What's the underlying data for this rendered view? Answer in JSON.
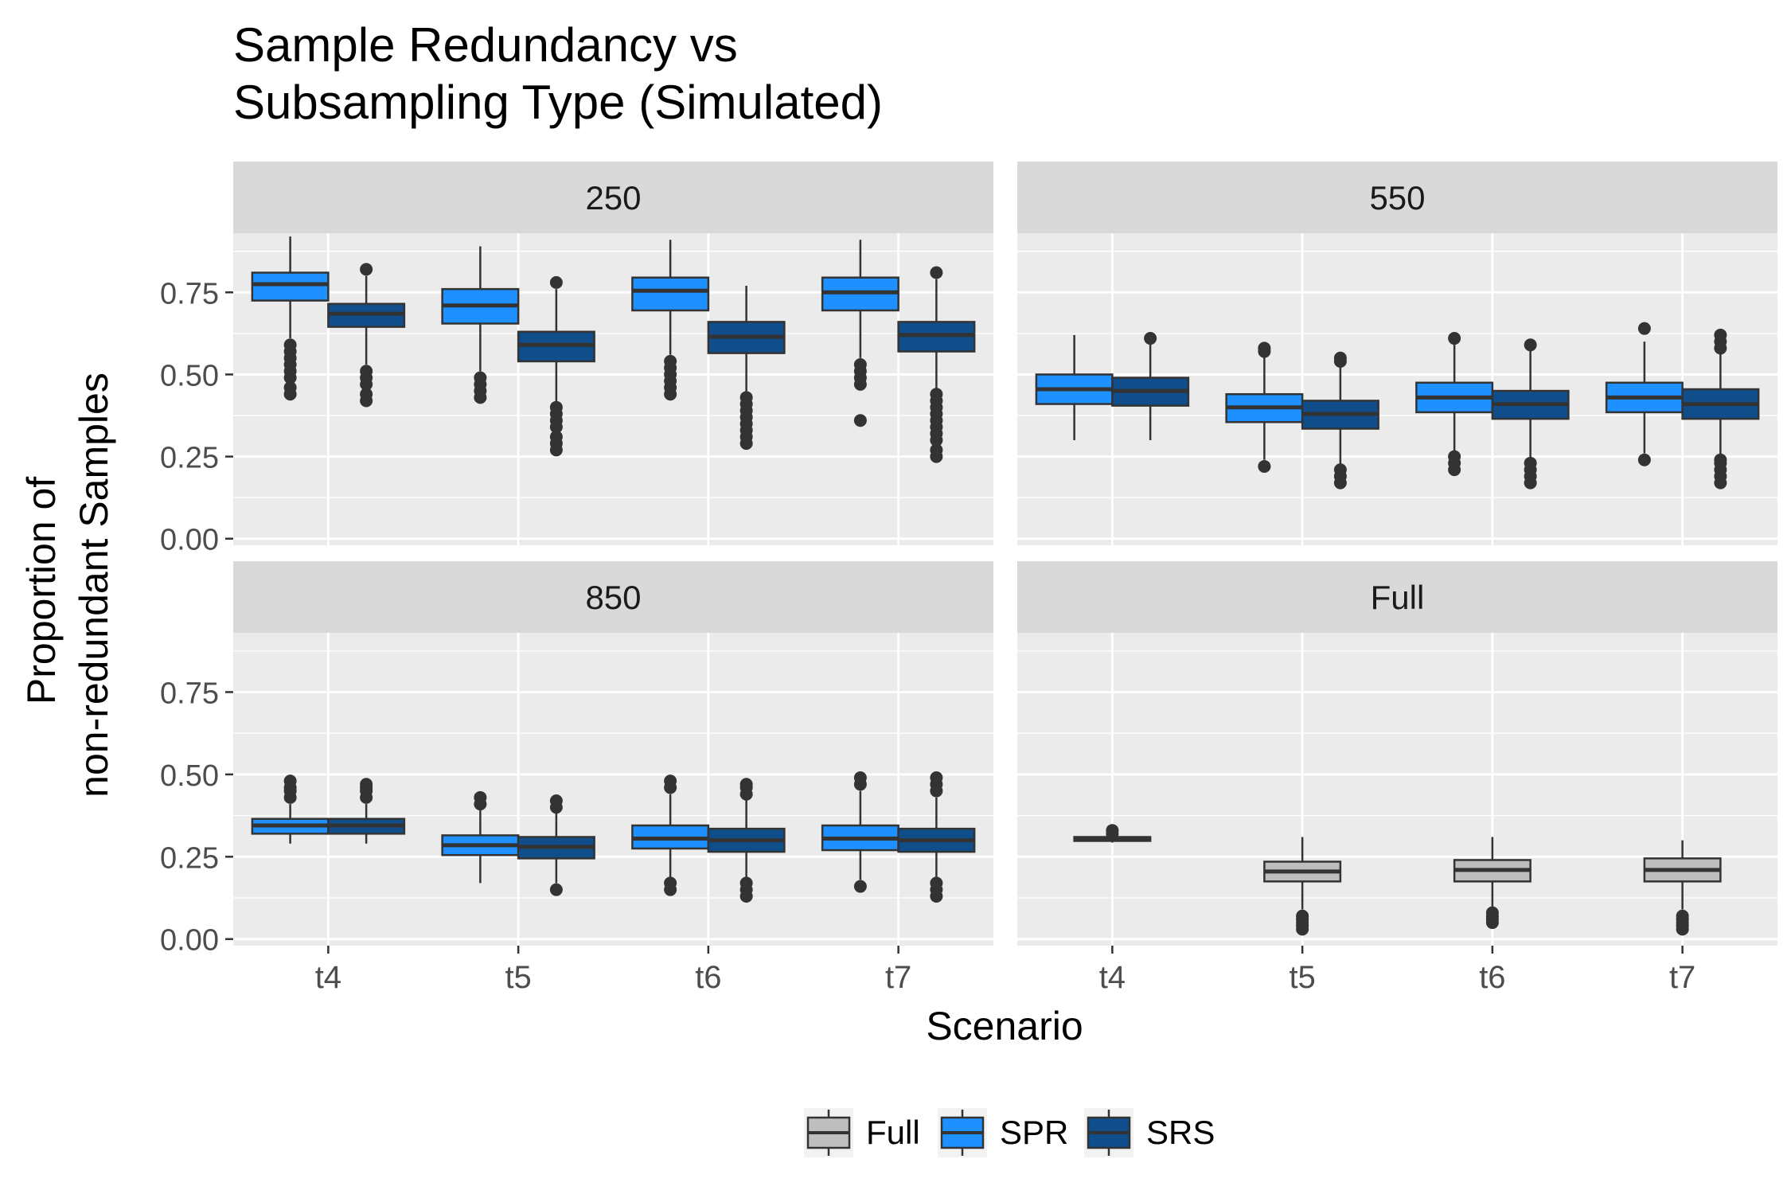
{
  "chart_data": {
    "type": "boxplot",
    "title": "Sample Redundancy vs\nSubsampling Type (Simulated)",
    "xlabel": "Scenario",
    "ylabel": "Proportion of\nnon-redundant Samples",
    "categories": [
      "t4",
      "t5",
      "t6",
      "t7"
    ],
    "yticks": [
      0.0,
      0.25,
      0.5,
      0.75
    ],
    "ytick_labels": [
      "0.00",
      "0.25",
      "0.50",
      "0.75"
    ],
    "ylim": [
      -0.02,
      0.93
    ],
    "grid": true,
    "legend_position": "bottom",
    "legend": [
      {
        "name": "Full",
        "color": "#bebebe"
      },
      {
        "name": "SPR",
        "color": "#1e90ff"
      },
      {
        "name": "SRS",
        "color": "#104e8b"
      }
    ],
    "panels": [
      {
        "name": "250",
        "boxes": [
          {
            "category": "t4",
            "group": "SPR",
            "whisker_low": 0.61,
            "q1": 0.725,
            "median": 0.775,
            "q3": 0.81,
            "whisker_high": 0.92,
            "outliers": [
              0.44,
              0.46,
              0.49,
              0.51,
              0.53,
              0.55,
              0.57,
              0.59
            ]
          },
          {
            "category": "t4",
            "group": "SRS",
            "whisker_low": 0.53,
            "q1": 0.645,
            "median": 0.685,
            "q3": 0.715,
            "whisker_high": 0.8,
            "outliers": [
              0.42,
              0.44,
              0.47,
              0.49,
              0.51,
              0.82
            ]
          },
          {
            "category": "t5",
            "group": "SPR",
            "whisker_low": 0.51,
            "q1": 0.655,
            "median": 0.71,
            "q3": 0.76,
            "whisker_high": 0.89,
            "outliers": [
              0.43,
              0.45,
              0.47,
              0.49
            ]
          },
          {
            "category": "t5",
            "group": "SRS",
            "whisker_low": 0.41,
            "q1": 0.54,
            "median": 0.59,
            "q3": 0.63,
            "whisker_high": 0.76,
            "outliers": [
              0.27,
              0.29,
              0.31,
              0.34,
              0.36,
              0.38,
              0.4,
              0.78
            ]
          },
          {
            "category": "t6",
            "group": "SPR",
            "whisker_low": 0.56,
            "q1": 0.695,
            "median": 0.755,
            "q3": 0.795,
            "whisker_high": 0.91,
            "outliers": [
              0.44,
              0.46,
              0.48,
              0.5,
              0.52,
              0.54
            ]
          },
          {
            "category": "t6",
            "group": "SRS",
            "whisker_low": 0.44,
            "q1": 0.565,
            "median": 0.615,
            "q3": 0.66,
            "whisker_high": 0.77,
            "outliers": [
              0.29,
              0.31,
              0.33,
              0.35,
              0.37,
              0.39,
              0.41,
              0.43
            ]
          },
          {
            "category": "t7",
            "group": "SPR",
            "whisker_low": 0.55,
            "q1": 0.695,
            "median": 0.75,
            "q3": 0.795,
            "whisker_high": 0.91,
            "outliers": [
              0.36,
              0.47,
              0.49,
              0.51,
              0.53
            ]
          },
          {
            "category": "t7",
            "group": "SRS",
            "whisker_low": 0.45,
            "q1": 0.57,
            "median": 0.62,
            "q3": 0.66,
            "whisker_high": 0.79,
            "outliers": [
              0.25,
              0.27,
              0.3,
              0.32,
              0.34,
              0.36,
              0.38,
              0.4,
              0.42,
              0.44,
              0.81
            ]
          }
        ]
      },
      {
        "name": "550",
        "boxes": [
          {
            "category": "t4",
            "group": "SPR",
            "whisker_low": 0.3,
            "q1": 0.41,
            "median": 0.455,
            "q3": 0.5,
            "whisker_high": 0.62,
            "outliers": []
          },
          {
            "category": "t4",
            "group": "SRS",
            "whisker_low": 0.3,
            "q1": 0.405,
            "median": 0.45,
            "q3": 0.49,
            "whisker_high": 0.6,
            "outliers": [
              0.61
            ]
          },
          {
            "category": "t5",
            "group": "SPR",
            "whisker_low": 0.24,
            "q1": 0.355,
            "median": 0.4,
            "q3": 0.44,
            "whisker_high": 0.56,
            "outliers": [
              0.22,
              0.57,
              0.58
            ]
          },
          {
            "category": "t5",
            "group": "SRS",
            "whisker_low": 0.22,
            "q1": 0.335,
            "median": 0.38,
            "q3": 0.42,
            "whisker_high": 0.53,
            "outliers": [
              0.17,
              0.19,
              0.21,
              0.54,
              0.55
            ]
          },
          {
            "category": "t6",
            "group": "SPR",
            "whisker_low": 0.26,
            "q1": 0.385,
            "median": 0.43,
            "q3": 0.475,
            "whisker_high": 0.6,
            "outliers": [
              0.21,
              0.23,
              0.25,
              0.61
            ]
          },
          {
            "category": "t6",
            "group": "SRS",
            "whisker_low": 0.24,
            "q1": 0.365,
            "median": 0.41,
            "q3": 0.45,
            "whisker_high": 0.58,
            "outliers": [
              0.17,
              0.19,
              0.21,
              0.23,
              0.59
            ]
          },
          {
            "category": "t7",
            "group": "SPR",
            "whisker_low": 0.26,
            "q1": 0.385,
            "median": 0.43,
            "q3": 0.475,
            "whisker_high": 0.6,
            "outliers": [
              0.24,
              0.64
            ]
          },
          {
            "category": "t7",
            "group": "SRS",
            "whisker_low": 0.25,
            "q1": 0.365,
            "median": 0.41,
            "q3": 0.455,
            "whisker_high": 0.57,
            "outliers": [
              0.17,
              0.19,
              0.21,
              0.23,
              0.24,
              0.58,
              0.6,
              0.62
            ]
          }
        ]
      },
      {
        "name": "850",
        "boxes": [
          {
            "category": "t4",
            "group": "SPR",
            "whisker_low": 0.29,
            "q1": 0.32,
            "median": 0.345,
            "q3": 0.365,
            "whisker_high": 0.41,
            "outliers": [
              0.43,
              0.45,
              0.46,
              0.48
            ]
          },
          {
            "category": "t4",
            "group": "SRS",
            "whisker_low": 0.29,
            "q1": 0.32,
            "median": 0.345,
            "q3": 0.365,
            "whisker_high": 0.41,
            "outliers": [
              0.43,
              0.45,
              0.46,
              0.47
            ]
          },
          {
            "category": "t5",
            "group": "SPR",
            "whisker_low": 0.17,
            "q1": 0.255,
            "median": 0.285,
            "q3": 0.315,
            "whisker_high": 0.4,
            "outliers": [
              0.41,
              0.43
            ]
          },
          {
            "category": "t5",
            "group": "SRS",
            "whisker_low": 0.17,
            "q1": 0.245,
            "median": 0.28,
            "q3": 0.31,
            "whisker_high": 0.4,
            "outliers": [
              0.15,
              0.4,
              0.42
            ]
          },
          {
            "category": "t6",
            "group": "SPR",
            "whisker_low": 0.18,
            "q1": 0.275,
            "median": 0.305,
            "q3": 0.345,
            "whisker_high": 0.44,
            "outliers": [
              0.15,
              0.17,
              0.46,
              0.48
            ]
          },
          {
            "category": "t6",
            "group": "SRS",
            "whisker_low": 0.18,
            "q1": 0.265,
            "median": 0.3,
            "q3": 0.335,
            "whisker_high": 0.43,
            "outliers": [
              0.13,
              0.15,
              0.17,
              0.44,
              0.46,
              0.47
            ]
          },
          {
            "category": "t7",
            "group": "SPR",
            "whisker_low": 0.18,
            "q1": 0.27,
            "median": 0.305,
            "q3": 0.345,
            "whisker_high": 0.45,
            "outliers": [
              0.16,
              0.47,
              0.49
            ]
          },
          {
            "category": "t7",
            "group": "SRS",
            "whisker_low": 0.18,
            "q1": 0.265,
            "median": 0.3,
            "q3": 0.335,
            "whisker_high": 0.43,
            "outliers": [
              0.13,
              0.15,
              0.17,
              0.45,
              0.47,
              0.49
            ]
          }
        ]
      },
      {
        "name": "Full",
        "boxes": [
          {
            "category": "t4",
            "group": "Full",
            "whisker_low": 0.293,
            "q1": 0.298,
            "median": 0.305,
            "q3": 0.31,
            "whisker_high": 0.318,
            "outliers": [
              0.32,
              0.33
            ]
          },
          {
            "category": "t5",
            "group": "Full",
            "whisker_low": 0.09,
            "q1": 0.175,
            "median": 0.205,
            "q3": 0.235,
            "whisker_high": 0.31,
            "outliers": [
              0.03,
              0.04,
              0.05,
              0.06,
              0.07
            ]
          },
          {
            "category": "t6",
            "group": "Full",
            "whisker_low": 0.09,
            "q1": 0.175,
            "median": 0.21,
            "q3": 0.24,
            "whisker_high": 0.31,
            "outliers": [
              0.05,
              0.06,
              0.07,
              0.08
            ]
          },
          {
            "category": "t7",
            "group": "Full",
            "whisker_low": 0.09,
            "q1": 0.175,
            "median": 0.21,
            "q3": 0.245,
            "whisker_high": 0.3,
            "outliers": [
              0.03,
              0.04,
              0.05,
              0.06,
              0.07
            ]
          }
        ]
      }
    ]
  }
}
